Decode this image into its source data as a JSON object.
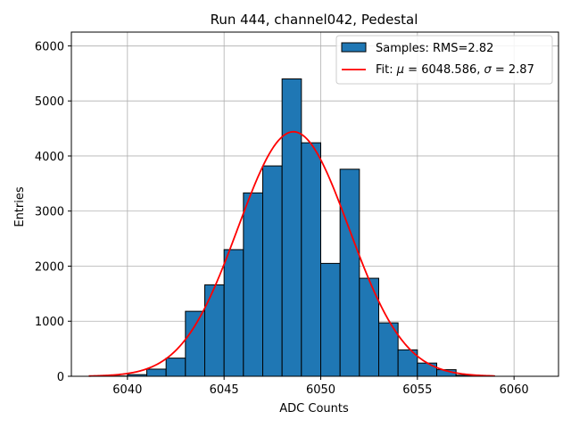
{
  "chart_data": {
    "type": "bar",
    "title": "Run 444, channel042, Pedestal",
    "xlabel": "ADC Counts",
    "ylabel": "Entries",
    "xlim": [
      6037.1,
      6062.3
    ],
    "ylim": [
      0,
      6250
    ],
    "grid": true,
    "x_ticks": [
      6040,
      6045,
      6050,
      6055,
      6060
    ],
    "y_ticks": [
      0,
      1000,
      2000,
      3000,
      4000,
      5000,
      6000
    ],
    "bin_edges": [
      6038,
      6039,
      6040,
      6041,
      6042,
      6043,
      6044,
      6045,
      6046,
      6047,
      6048,
      6049,
      6050,
      6051,
      6052,
      6053,
      6054,
      6055,
      6056,
      6057,
      6058,
      6059,
      6060,
      6061
    ],
    "values": [
      0,
      5,
      30,
      130,
      330,
      1180,
      1660,
      2300,
      3330,
      3820,
      5400,
      4240,
      2050,
      3760,
      1780,
      970,
      480,
      240,
      120,
      20,
      5,
      0,
      0
    ],
    "fit": {
      "mu": 6048.586,
      "sigma": 2.87,
      "amplitude": 4440,
      "x_range": [
        6038,
        6059
      ]
    },
    "legend": {
      "position": "top-right",
      "samples_label": "Samples: RMS=2.82",
      "fit_label_prefix": "Fit: ",
      "fit_mu_symbol": "μ",
      "fit_mu_value": " = 6048.586, ",
      "fit_sigma_symbol": "σ",
      "fit_sigma_value": " = 2.87"
    },
    "colors": {
      "bar": "#1f77b4",
      "fit": "#ff0000",
      "grid": "#b0b0b0"
    }
  }
}
